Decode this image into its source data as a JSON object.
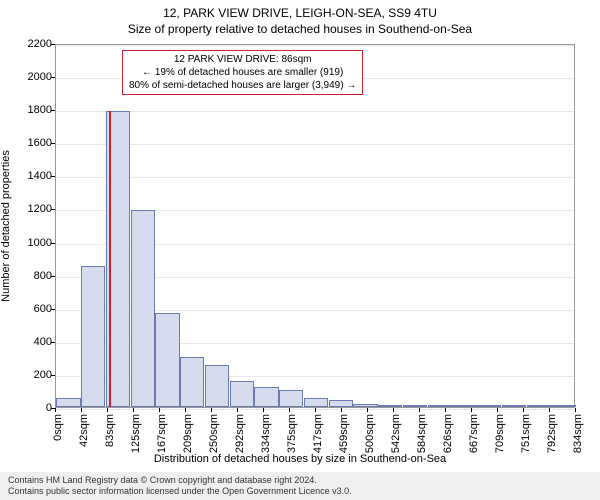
{
  "chart": {
    "title_main": "12, PARK VIEW DRIVE, LEIGH-ON-SEA, SS9 4TU",
    "title_sub": "Size of property relative to detached houses in Southend-on-Sea",
    "y_axis_label": "Number of detached properties",
    "x_axis_label": "Distribution of detached houses by size in Southend-on-Sea",
    "ylim": [
      0,
      2200
    ],
    "y_ticks": [
      0,
      200,
      400,
      600,
      800,
      1000,
      1200,
      1400,
      1600,
      1800,
      2000,
      2200
    ],
    "x_tick_labels": [
      "0sqm",
      "42sqm",
      "83sqm",
      "125sqm",
      "167sqm",
      "209sqm",
      "250sqm",
      "292sqm",
      "334sqm",
      "375sqm",
      "417sqm",
      "459sqm",
      "500sqm",
      "542sqm",
      "584sqm",
      "626sqm",
      "667sqm",
      "709sqm",
      "751sqm",
      "792sqm",
      "834sqm"
    ],
    "bar_color": "#d6dced",
    "bar_border_color": "#6a7ab3",
    "marker_color": "#d02030",
    "grid_color": "#e8e8e8",
    "background_color": "#ffffff",
    "bars": [
      55,
      850,
      1790,
      1190,
      570,
      300,
      255,
      160,
      120,
      100,
      55,
      40,
      20,
      15,
      10,
      10,
      8,
      6,
      5,
      4,
      3
    ],
    "marker_x_sqm": 86,
    "marker_height": 1790,
    "annotation": {
      "line1": "12 PARK VIEW DRIVE: 86sqm",
      "line2": "← 19% of detached houses are smaller (919)",
      "line3": "80% of semi-detached houses are larger (3,949) →"
    }
  },
  "footer": {
    "line1": "Contains HM Land Registry data © Crown copyright and database right 2024.",
    "line2": "Contains public sector information licensed under the Open Government Licence v3.0."
  }
}
